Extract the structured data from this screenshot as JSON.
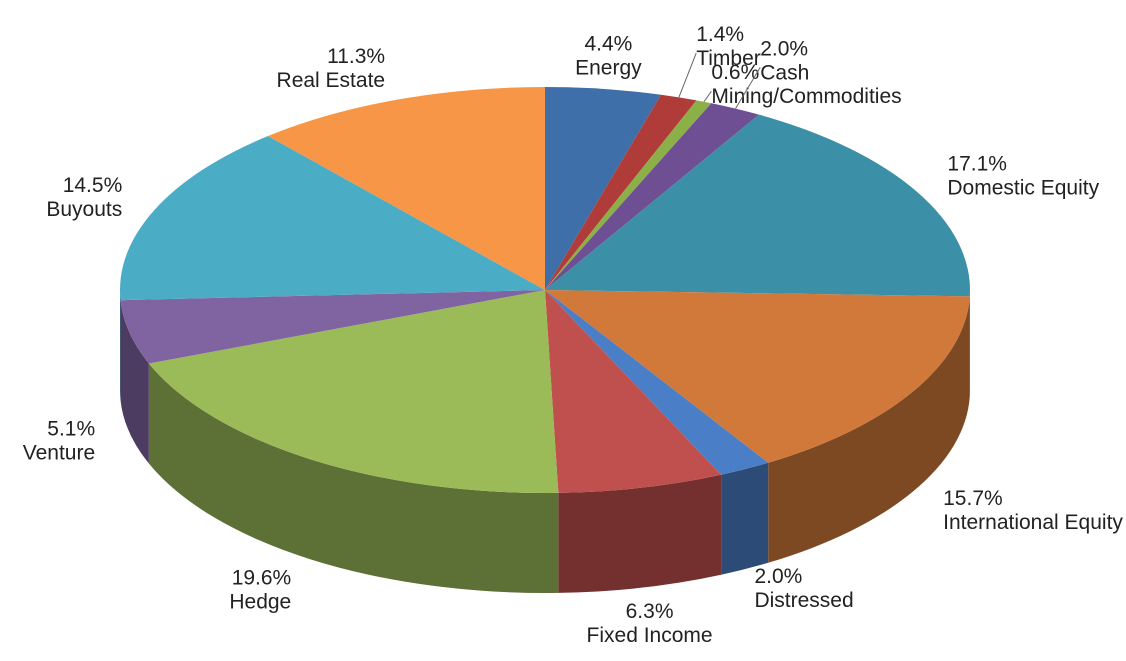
{
  "chart_data": {
    "type": "pie3d",
    "categories": [
      "Energy",
      "Timber",
      "Mining/Commodities",
      "Cash",
      "Domestic Equity",
      "International Equity",
      "Distressed",
      "Fixed Income",
      "Hedge",
      "Venture",
      "Buyouts",
      "Real Estate"
    ],
    "values": [
      4.4,
      1.4,
      0.6,
      2.0,
      17.1,
      15.7,
      2.0,
      6.3,
      19.6,
      5.1,
      14.5,
      11.3
    ],
    "value_labels": [
      "4.4%",
      "1.4%",
      "0.6%",
      "2.0%",
      "17.1%",
      "15.7%",
      "2.0%",
      "6.3%",
      "19.6%",
      "5.1%",
      "14.5%",
      "11.3%"
    ],
    "colors": [
      "#3f6fa8",
      "#b03c3a",
      "#8cb048",
      "#6e4f94",
      "#3b8fa6",
      "#d0793a",
      "#4a7ec6",
      "#c0504d",
      "#9bbb59",
      "#8064a2",
      "#4bacc6",
      "#f79646"
    ]
  }
}
